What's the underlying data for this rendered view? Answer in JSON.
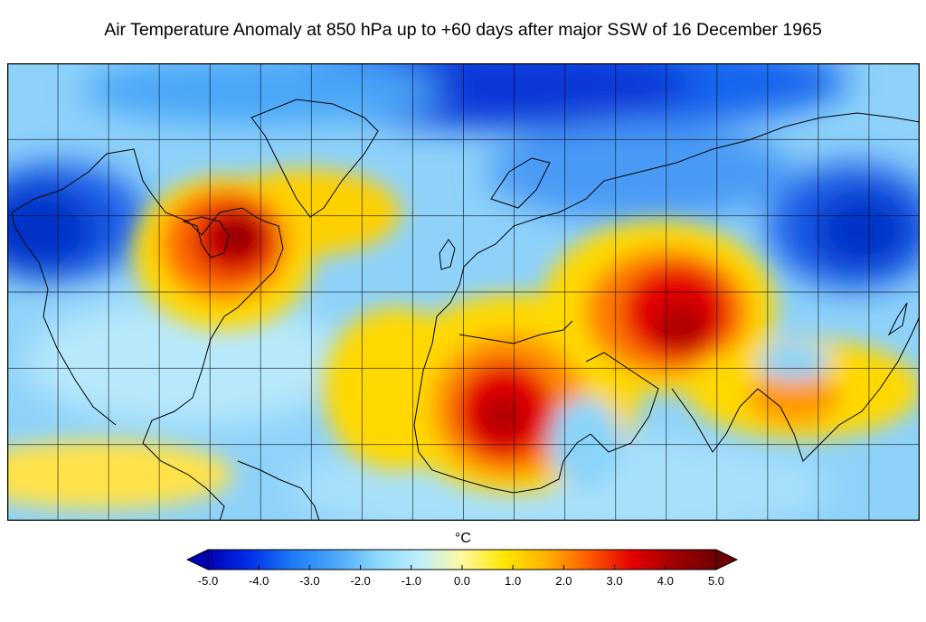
{
  "title": "Air Temperature Anomaly at 850 hPa up to +60 days after major SSW of 16 December 1965",
  "map": {
    "projection": "equirectangular",
    "lon_range": [
      -180,
      180
    ],
    "lat_range": [
      -30,
      90
    ],
    "grid": true,
    "grid_spacing_deg": 20
  },
  "colorbar": {
    "unit": "°C",
    "min": -5.0,
    "max": 5.0,
    "extend": "both",
    "ticks": [
      "-5.0",
      "-4.0",
      "-3.0",
      "-2.0",
      "-1.0",
      "0.0",
      "1.0",
      "2.0",
      "3.0",
      "4.0",
      "5.0"
    ],
    "colormap": [
      "#0000b4",
      "#0030e8",
      "#1d7ef5",
      "#4aa6f8",
      "#8cd8fa",
      "#bfeefc",
      "#fff8a0",
      "#ffe800",
      "#ffb000",
      "#ff5a00",
      "#e60000",
      "#a00000",
      "#6e0000"
    ]
  },
  "chart_data": {
    "type": "heatmap",
    "title": "Air Temperature Anomaly at 850 hPa up to +60 days after major SSW of 16 December 1965",
    "variable": "850 hPa air temperature anomaly",
    "unit": "°C",
    "range": [
      -5.0,
      5.0
    ],
    "background_anomaly": -1.5,
    "anomaly_features": [
      {
        "region": "Eastern Canada / Hudson Bay / Labrador",
        "anomaly": 4.5
      },
      {
        "region": "Southern Greenland to North Atlantic",
        "anomaly": 1.5
      },
      {
        "region": "Sahara (Algeria, Niger, Chad)",
        "anomaly": 4.0
      },
      {
        "region": "Tropical Atlantic / Cape Verde",
        "anomaly": 2.0
      },
      {
        "region": "Eastern Europe / Turkey",
        "anomaly": 2.0
      },
      {
        "region": "Central Asia (Kazakhstan, Afghanistan, Iran)",
        "anomaly": 4.0
      },
      {
        "region": "South and Southeast Asia (India, Indochina, South China)",
        "anomaly": 2.5
      },
      {
        "region": "Eastern Pacific near equator",
        "anomaly": 1.0
      },
      {
        "region": "Alaska / Bering Sea",
        "anomaly": -4.5
      },
      {
        "region": "Arctic north of Siberia (Kara/Laptev Sea)",
        "anomaly": -4.0
      },
      {
        "region": "Eastern Siberia",
        "anomaly": -4.0
      },
      {
        "region": "Western Russia / Central Siberia",
        "anomaly": -2.5
      },
      {
        "region": "Arabian Peninsula / Red Sea",
        "anomaly": -1.0
      },
      {
        "region": "Western and Central Africa coast",
        "anomaly": -1.5
      },
      {
        "region": "Northwest Atlantic (US East Coast)",
        "anomaly": -2.0
      }
    ]
  }
}
